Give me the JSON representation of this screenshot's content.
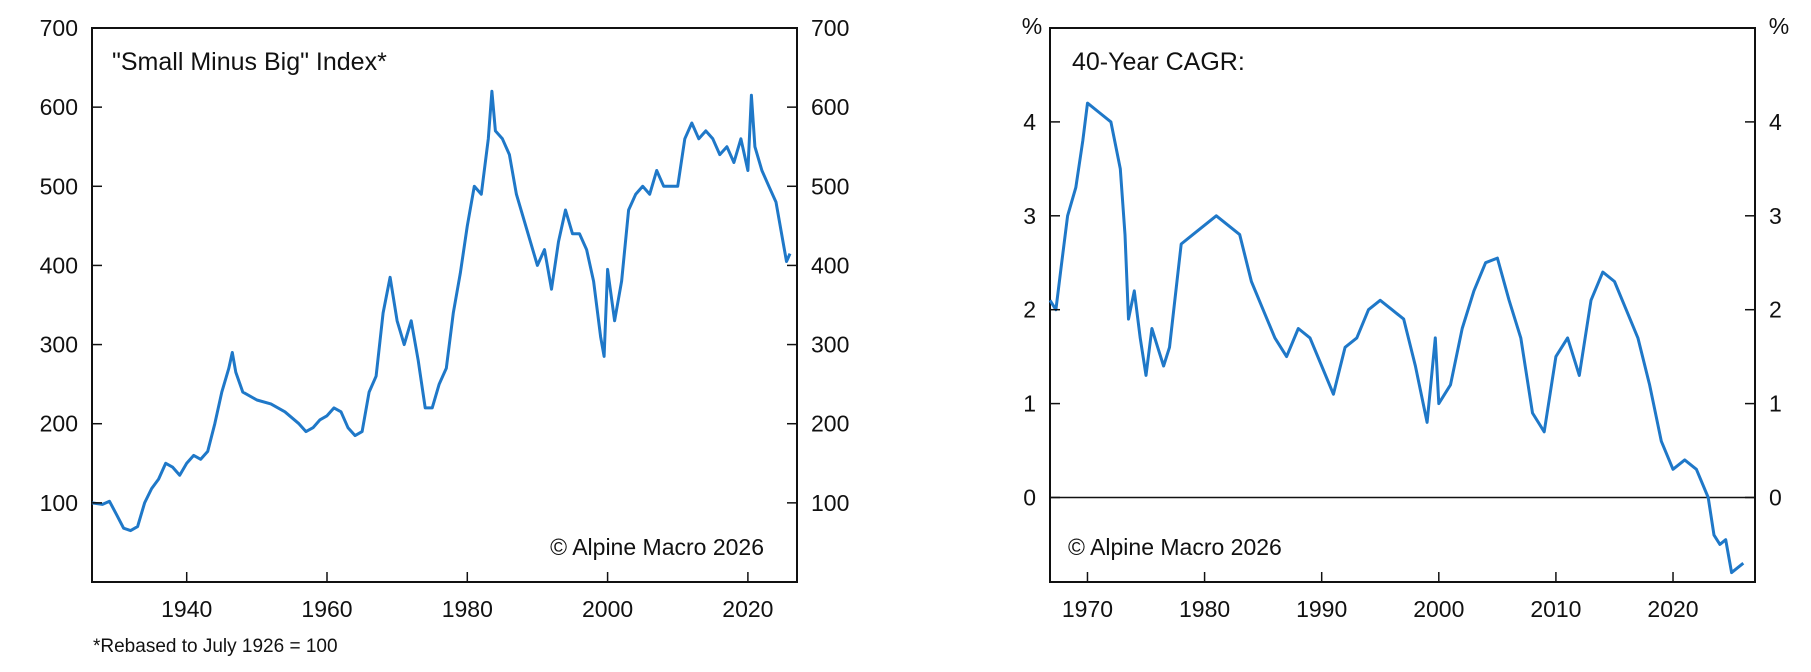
{
  "colors": {
    "series": "#1f78c8",
    "axis": "#111111",
    "zero_line": "#111111",
    "background": "#ffffff"
  },
  "footnote": "*Rebased to July 1926 = 100",
  "chart_data": [
    {
      "type": "line",
      "title": "\"Small Minus Big\" Index*",
      "annotation": "© Alpine Macro 2026",
      "xlabel": "",
      "ylabel": "",
      "xlim": [
        1926.5,
        2027.0
      ],
      "ylim": [
        0,
        700
      ],
      "x_ticks": [
        "1940",
        "1960",
        "1980",
        "2000",
        "2020"
      ],
      "y_ticks": [
        "100",
        "200",
        "300",
        "400",
        "500",
        "600",
        "700"
      ],
      "y_axes": "left and right",
      "grid": false,
      "series": [
        {
          "x": [
            1926.5,
            1928,
            1929,
            1930,
            1931,
            1932,
            1933,
            1934,
            1935,
            1936,
            1937,
            1938,
            1939,
            1940,
            1941,
            1942,
            1943,
            1944,
            1945,
            1946,
            1946.5,
            1947,
            1948,
            1950,
            1952,
            1954,
            1956,
            1957,
            1958,
            1959,
            1960,
            1961,
            1962,
            1963,
            1964,
            1965,
            1966,
            1967,
            1968,
            1969,
            1970,
            1971,
            1972,
            1973,
            1974,
            1975,
            1976,
            1977,
            1978,
            1979,
            1980,
            1981,
            1982,
            1983,
            1983.5,
            1984,
            1985,
            1986,
            1987,
            1988,
            1989,
            1990,
            1991,
            1992,
            1993,
            1994,
            1995,
            1996,
            1997,
            1998,
            1999,
            1999.5,
            2000,
            2001,
            2002,
            2003,
            2004,
            2005,
            2006,
            2007,
            2008,
            2009,
            2010,
            2011,
            2012,
            2013,
            2014,
            2015,
            2016,
            2017,
            2018,
            2019,
            2020,
            2020.5,
            2021,
            2022,
            2023,
            2024,
            2025,
            2025.5,
            2026
          ],
          "values": [
            100,
            98,
            102,
            85,
            68,
            65,
            70,
            100,
            118,
            130,
            150,
            145,
            135,
            150,
            160,
            155,
            165,
            200,
            240,
            270,
            290,
            265,
            240,
            230,
            225,
            215,
            200,
            190,
            195,
            205,
            210,
            220,
            215,
            195,
            185,
            190,
            240,
            260,
            340,
            385,
            330,
            300,
            330,
            280,
            220,
            220,
            250,
            270,
            340,
            390,
            450,
            500,
            490,
            560,
            620,
            570,
            560,
            540,
            490,
            460,
            430,
            400,
            420,
            370,
            430,
            470,
            440,
            440,
            420,
            380,
            310,
            285,
            395,
            330,
            380,
            470,
            490,
            500,
            490,
            520,
            500,
            500,
            500,
            560,
            580,
            560,
            570,
            560,
            540,
            550,
            530,
            560,
            520,
            615,
            550,
            520,
            500,
            480,
            430,
            405,
            415
          ]
        }
      ]
    },
    {
      "type": "line",
      "title": "40-Year CAGR:",
      "annotation": "© Alpine Macro 2026",
      "xlabel": "",
      "ylabel": "%",
      "xlim": [
        1966.8,
        2027.0
      ],
      "ylim": [
        -0.9,
        5.0
      ],
      "x_ticks": [
        "1970",
        "1980",
        "1990",
        "2000",
        "2010",
        "2020"
      ],
      "y_ticks": [
        "0",
        "1",
        "2",
        "3",
        "4"
      ],
      "y_axes": "left and right",
      "grid": false,
      "zero_line": true,
      "series": [
        {
          "x": [
            1966.8,
            1967.3,
            1967.8,
            1968.3,
            1969,
            1969.6,
            1970,
            1971,
            1972,
            1972.8,
            1973.2,
            1973.5,
            1974,
            1974.5,
            1975,
            1975.5,
            1976,
            1976.5,
            1977,
            1978,
            1979,
            1980,
            1981,
            1982,
            1983,
            1984,
            1985,
            1986,
            1987,
            1988,
            1989,
            1990,
            1991,
            1992,
            1993,
            1994,
            1995,
            1996,
            1997,
            1998,
            1999,
            1999.7,
            2000,
            2001,
            2002,
            2003,
            2004,
            2005,
            2006,
            2007,
            2008,
            2009,
            2010,
            2011,
            2012,
            2013,
            2014,
            2015,
            2016,
            2017,
            2018,
            2019,
            2020,
            2021,
            2022,
            2023,
            2023.5,
            2024,
            2024.5,
            2025,
            2025.5,
            2026
          ],
          "values": [
            2.1,
            2.0,
            2.5,
            3.0,
            3.3,
            3.8,
            4.2,
            4.1,
            4.0,
            3.5,
            2.8,
            1.9,
            2.2,
            1.7,
            1.3,
            1.8,
            1.6,
            1.4,
            1.6,
            2.7,
            2.8,
            2.9,
            3.0,
            2.9,
            2.8,
            2.3,
            2.0,
            1.7,
            1.5,
            1.8,
            1.7,
            1.4,
            1.1,
            1.6,
            1.7,
            2.0,
            2.1,
            2.0,
            1.9,
            1.4,
            0.8,
            1.7,
            1.0,
            1.2,
            1.8,
            2.2,
            2.5,
            2.55,
            2.1,
            1.7,
            0.9,
            0.7,
            1.5,
            1.7,
            1.3,
            2.1,
            2.4,
            2.3,
            2.0,
            1.7,
            1.2,
            0.6,
            0.3,
            0.4,
            0.3,
            0.0,
            -0.4,
            -0.5,
            -0.45,
            -0.8,
            -0.75,
            -0.7
          ]
        }
      ]
    }
  ]
}
